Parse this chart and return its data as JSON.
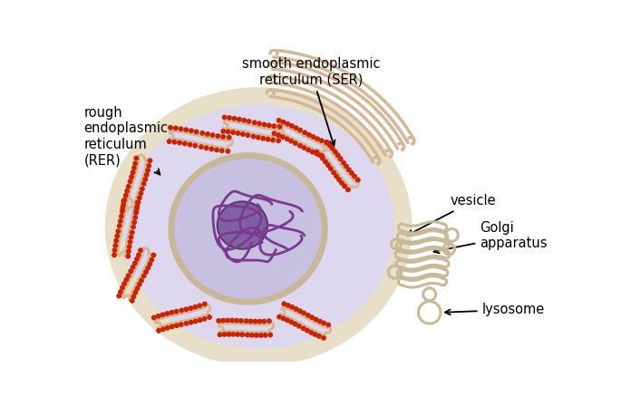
{
  "bg_color": "#ffffff",
  "cell_fill": "#ddd8ee",
  "cell_edge": "#c8b898",
  "nucleus_fill": "#c8c0e0",
  "nucleus_edge": "#a898c8",
  "nucleolus_fill": "#8060a0",
  "nucleolus_edge": "#5a3a70",
  "chromatin_color": "#7a3a90",
  "rer_color": "#d4b896",
  "rib_color": "#cc2200",
  "ser_color": "#d4b896",
  "golgi_color": "#c8ba98",
  "label_color": "#000000",
  "labels": {
    "rer": "rough\nendoplasmic\nreticulum\n(RER)",
    "ser": "smooth endoplasmic\nreticulum (SER)",
    "vesicle": "vesicle",
    "golgi": "Golgi\napparatus",
    "lysosome": "lysosome"
  }
}
